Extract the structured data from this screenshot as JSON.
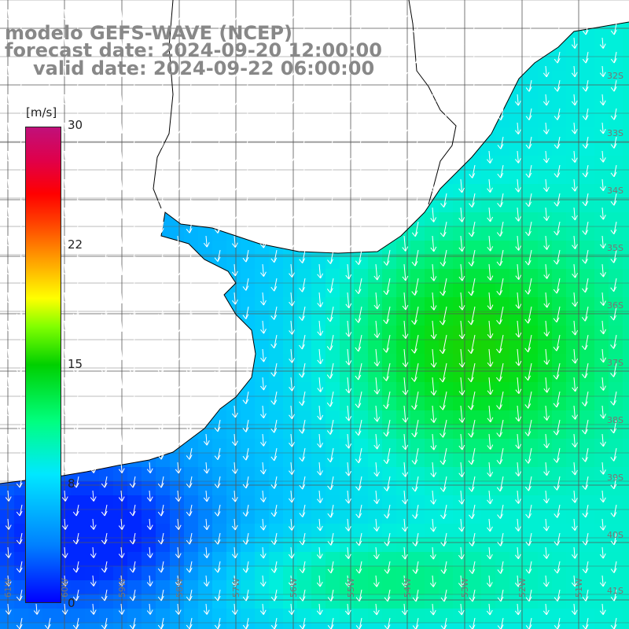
{
  "title": {
    "line1": "modelo GEFS-WAVE (NCEP)",
    "line2": "forecast date: 2024-09-20 12:00:00",
    "line3": "valid date: 2024-09-22 06:00:00"
  },
  "colorbar": {
    "unit": "[m/s]",
    "ticks": [
      "30",
      "22",
      "15",
      "8",
      "0"
    ],
    "colors": [
      "#0000ff",
      "#0080ff",
      "#00e8ff",
      "#00ff80",
      "#00d000",
      "#ffff00",
      "#ff0000",
      "#c0107a"
    ]
  },
  "map": {
    "land_color": "#ffffff",
    "grid": true,
    "lat_labels": [
      "32S",
      "33S",
      "34S",
      "35S",
      "36S",
      "37S",
      "38S",
      "39S",
      "40S",
      "41S"
    ],
    "lon_labels": [
      "61W",
      "60W",
      "59W",
      "58W",
      "57W",
      "56W",
      "55W",
      "54W",
      "53W",
      "52W",
      "51W"
    ],
    "wind_direction": "from north-northeast (arrows point south-southwest)"
  }
}
